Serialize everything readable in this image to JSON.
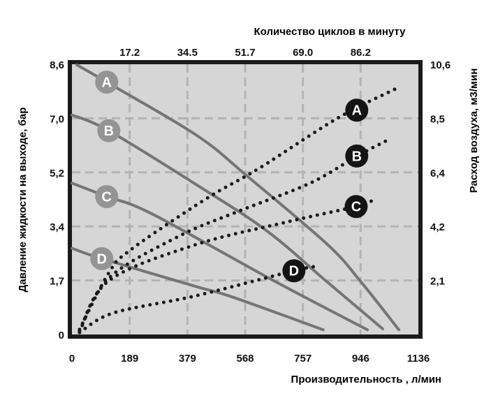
{
  "chart_data": {
    "type": "line",
    "description": "Pump performance chart: solid grey curves = outlet liquid pressure vs capacity, dotted black curves = air consumption vs capacity, for configurations A, B, C, D",
    "axes": {
      "top": {
        "label": "Количество циклов в минуту",
        "ticks": [
          "17.2",
          "34.5",
          "51.7",
          "69.0",
          "86.2"
        ]
      },
      "bottom": {
        "label": "Производительность , л/мин",
        "ticks": [
          "0",
          "189",
          "379",
          "568",
          "757",
          "946",
          "1136"
        ],
        "range": [
          0,
          1136
        ]
      },
      "left": {
        "label": "Давление жидкости на выходе, бар",
        "ticks": [
          "0",
          "1,7",
          "3,4",
          "5,2",
          "7,0",
          "8,6"
        ],
        "range": [
          0,
          8.62
        ]
      },
      "right": {
        "label": "Расход воздуха, м3/мин",
        "ticks": [
          "2,1",
          "4,2",
          "6,4",
          "8,5",
          "10,6"
        ],
        "range": [
          0,
          10.6
        ]
      }
    },
    "grid": true,
    "series": [
      {
        "name": "A",
        "quantity": "pressure",
        "unit": "бар",
        "style": "solid",
        "points": [
          [
            16,
            8.6
          ],
          [
            114,
            8.05
          ],
          [
            408,
            6.36
          ],
          [
            575,
            5.05
          ],
          [
            838,
            2.87
          ],
          [
            946,
            1.7
          ],
          [
            1072,
            0.15
          ]
        ],
        "label_at": [
          114,
          8.05
        ]
      },
      {
        "name": "B",
        "quantity": "pressure",
        "unit": "бар",
        "style": "solid",
        "points": [
          [
            0,
            7.0
          ],
          [
            121,
            6.5
          ],
          [
            408,
            4.78
          ],
          [
            637,
            3.32
          ],
          [
            827,
            1.76
          ],
          [
            1019,
            0.18
          ]
        ],
        "label_at": [
          121,
          6.5
        ]
      },
      {
        "name": "C",
        "quantity": "pressure",
        "unit": "бар",
        "style": "solid",
        "points": [
          [
            0,
            4.83
          ],
          [
            114,
            4.4
          ],
          [
            260,
            3.86
          ],
          [
            655,
            1.75
          ],
          [
            969,
            0.15
          ]
        ],
        "label_at": [
          114,
          4.4
        ]
      },
      {
        "name": "D",
        "quantity": "pressure",
        "unit": "бар",
        "style": "solid",
        "points": [
          [
            0,
            2.75
          ],
          [
            98,
            2.42
          ],
          [
            400,
            1.55
          ],
          [
            522,
            1.21
          ],
          [
            824,
            0.15
          ]
        ],
        "label_at": [
          98,
          2.42
        ]
      },
      {
        "name": "A",
        "quantity": "air",
        "unit": "м3/мин",
        "style": "dotted",
        "points": [
          [
            25,
            0.2
          ],
          [
            120,
            2.4
          ],
          [
            190,
            3.3
          ],
          [
            437,
            5.3
          ],
          [
            614,
            6.52
          ],
          [
            872,
            8.49
          ],
          [
            1067,
            9.67
          ]
        ],
        "label_at": [
          934,
          8.8
        ]
      },
      {
        "name": "B",
        "quantity": "air",
        "unit": "м3/мин",
        "style": "dotted",
        "points": [
          [
            25,
            0.15
          ],
          [
            120,
            2.2
          ],
          [
            350,
            3.85
          ],
          [
            550,
            4.85
          ],
          [
            780,
            5.93
          ],
          [
            934,
            6.99
          ],
          [
            1031,
            7.6
          ]
        ],
        "label_at": [
          934,
          7.0
        ]
      },
      {
        "name": "C",
        "quantity": "air",
        "unit": "м3/мин",
        "style": "dotted",
        "points": [
          [
            25,
            0.1
          ],
          [
            120,
            2.1
          ],
          [
            400,
            3.5
          ],
          [
            700,
            4.4
          ],
          [
            932,
            5.02
          ],
          [
            985,
            5.25
          ]
        ],
        "label_at": [
          932,
          5.02
        ]
      },
      {
        "name": "D",
        "quantity": "air",
        "unit": "м3/мин",
        "style": "dotted",
        "points": [
          [
            25,
            0.08
          ],
          [
            137,
            0.85
          ],
          [
            400,
            1.5
          ],
          [
            728,
            2.5
          ],
          [
            808,
            2.68
          ]
        ],
        "label_at": [
          728,
          2.5
        ]
      }
    ],
    "colors": {
      "page_background": "#ffffff",
      "plot_background": "#d6d6d6",
      "grid": "#b3b3b3",
      "border": "#1a1a1a",
      "solid_curve": "#757575",
      "dotted_curve": "#1a1a1a",
      "label_circle_solid": "#949494",
      "label_circle_dotted": "#141414",
      "label_letter": "#ffffff",
      "text": "#000000"
    }
  }
}
